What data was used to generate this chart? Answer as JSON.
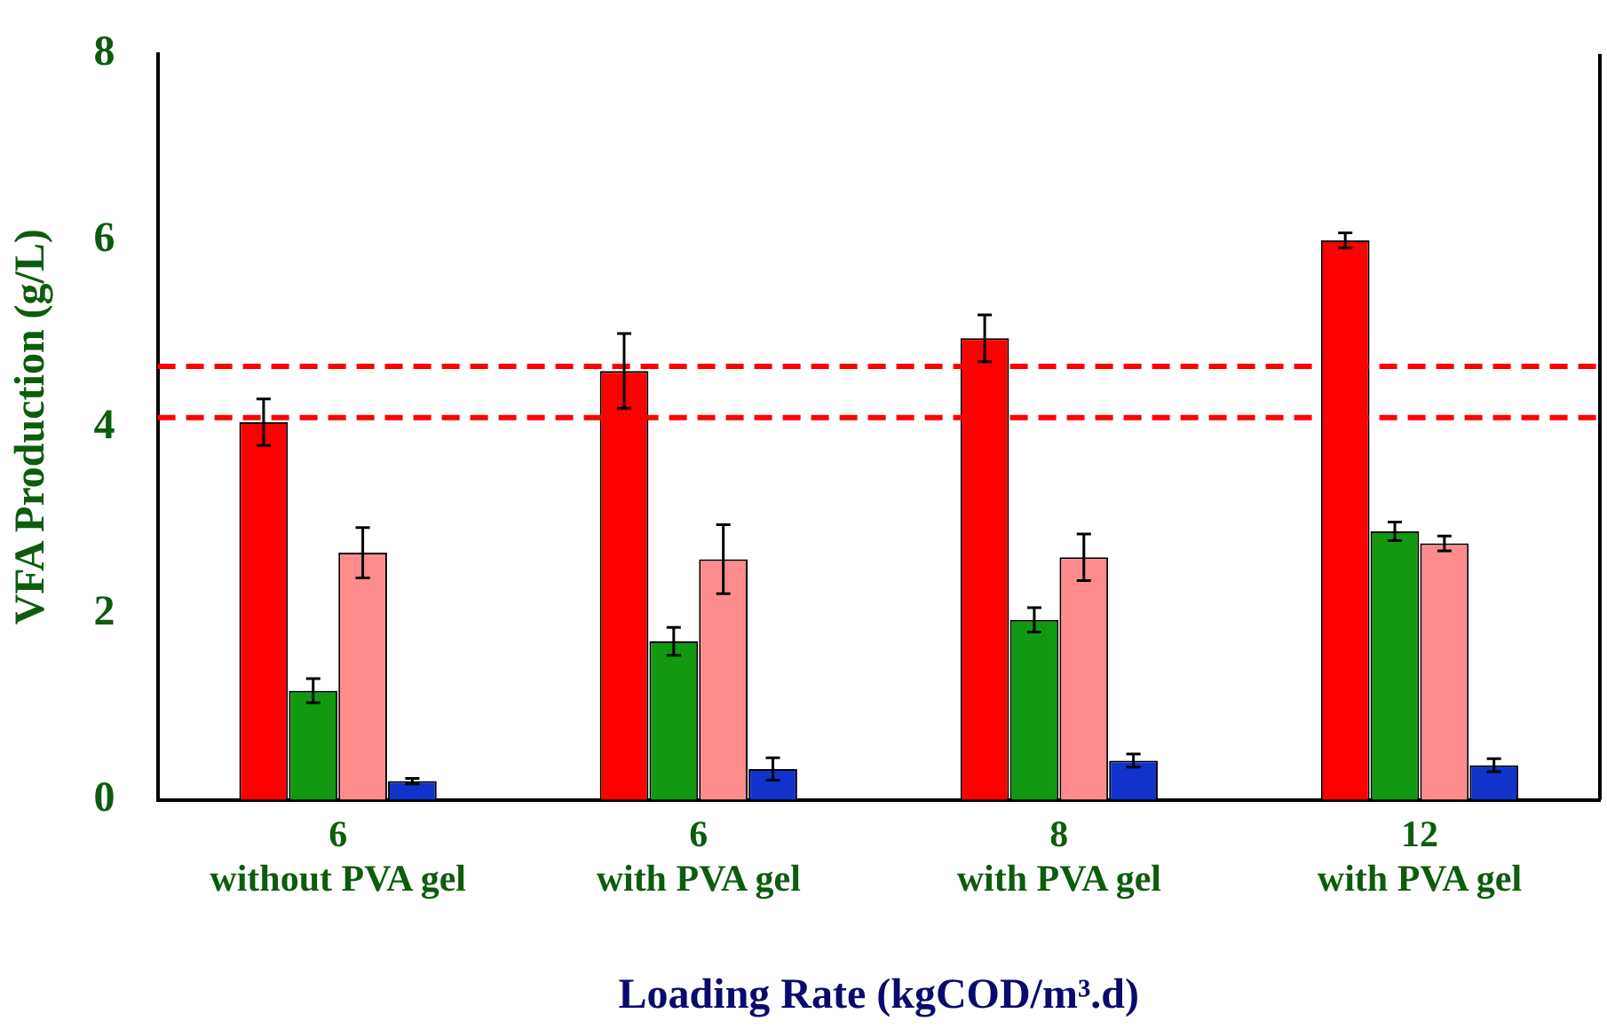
{
  "chart_data": {
    "type": "bar",
    "xlabel": "Loading Rate (kgCOD/m³.d)",
    "ylabel": "VFA Production (g/L)",
    "categories": [
      "6\nwithout PVA gel",
      "6\nwith PVA gel",
      "8\nwith PVA gel",
      "12\nwith PVA gel"
    ],
    "series": [
      {
        "color": "#ff0000",
        "values": [
          4.05,
          4.6,
          4.95,
          6.0
        ],
        "errors": [
          0.25,
          0.4,
          0.25,
          0.08
        ]
      },
      {
        "color": "#119911",
        "values": [
          1.17,
          1.7,
          1.93,
          2.88
        ],
        "errors": [
          0.13,
          0.15,
          0.13,
          0.1
        ]
      },
      {
        "color": "#ff8c8c",
        "values": [
          2.65,
          2.58,
          2.6,
          2.75
        ],
        "errors": [
          0.27,
          0.37,
          0.25,
          0.08
        ]
      },
      {
        "color": "#1133cc",
        "values": [
          0.2,
          0.33,
          0.42,
          0.37
        ],
        "errors": [
          0.03,
          0.12,
          0.07,
          0.07
        ]
      }
    ],
    "ylim": [
      0,
      8
    ],
    "yticks": [
      0,
      2,
      4,
      6,
      8
    ],
    "grid": false,
    "legend": false,
    "ref_lines": [
      {
        "axis": "y",
        "value": 4.1,
        "color": "#ff0000",
        "line_style": "dashed"
      },
      {
        "axis": "y",
        "value": 4.65,
        "color": "#ff0000",
        "line_style": "dashed"
      }
    ]
  }
}
